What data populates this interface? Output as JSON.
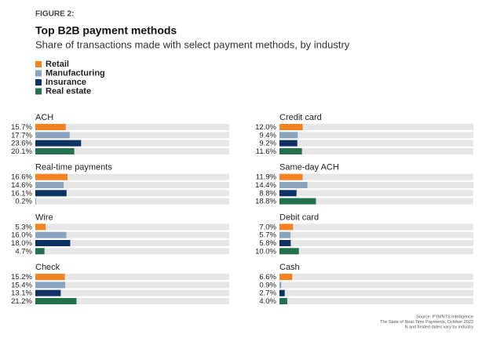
{
  "figure": "FIGURE 2:",
  "title": "Top B2B payment methods",
  "subtitle": "Share of transactions made with select payment methods, by industry",
  "legend": [
    {
      "name": "Retail",
      "color": "#f58220"
    },
    {
      "name": "Manufacturing",
      "color": "#8aa4bd"
    },
    {
      "name": "Insurance",
      "color": "#0f3264"
    },
    {
      "name": "Real estate",
      "color": "#23704f"
    }
  ],
  "source": [
    "Source: PYMNTS Intelligence",
    "The State of Real-Time Payments, October 2023",
    "N and fielded dates vary by industry"
  ],
  "chart_data": [
    {
      "type": "bar",
      "title": "ACH",
      "xlim": [
        0,
        100
      ],
      "values": [
        15.7,
        17.7,
        23.6,
        20.1
      ],
      "value_labels": [
        "15.7%",
        "17.7%",
        "23.6%",
        "20.1%"
      ]
    },
    {
      "type": "bar",
      "title": "Real-time payments",
      "xlim": [
        0,
        100
      ],
      "values": [
        16.6,
        14.6,
        16.1,
        0.2
      ],
      "value_labels": [
        "16.6%",
        "14.6%",
        "16.1%",
        "0.2%"
      ]
    },
    {
      "type": "bar",
      "title": "Wire",
      "xlim": [
        0,
        100
      ],
      "values": [
        5.3,
        16.0,
        18.0,
        4.7
      ],
      "value_labels": [
        "5.3%",
        "16.0%",
        "18.0%",
        "4.7%"
      ]
    },
    {
      "type": "bar",
      "title": "Check",
      "xlim": [
        0,
        100
      ],
      "values": [
        15.2,
        15.4,
        13.1,
        21.2
      ],
      "value_labels": [
        "15.2%",
        "15.4%",
        "13.1%",
        "21.2%"
      ]
    },
    {
      "type": "bar",
      "title": "Credit card",
      "xlim": [
        0,
        100
      ],
      "values": [
        12.0,
        9.4,
        9.2,
        11.6
      ],
      "value_labels": [
        "12.0%",
        "9.4%",
        "9.2%",
        "11.6%"
      ]
    },
    {
      "type": "bar",
      "title": "Same-day ACH",
      "xlim": [
        0,
        100
      ],
      "values": [
        11.9,
        14.4,
        8.8,
        18.8
      ],
      "value_labels": [
        "11.9%",
        "14.4%",
        "8.8%",
        "18.8%"
      ]
    },
    {
      "type": "bar",
      "title": "Debit card",
      "xlim": [
        0,
        100
      ],
      "values": [
        7.0,
        5.7,
        5.8,
        10.0
      ],
      "value_labels": [
        "7.0%",
        "5.7%",
        "5.8%",
        "10.0%"
      ]
    },
    {
      "type": "bar",
      "title": "Cash",
      "xlim": [
        0,
        100
      ],
      "values": [
        6.6,
        0.9,
        2.7,
        4.0
      ],
      "value_labels": [
        "6.6%",
        "0.9%",
        "2.7%",
        "4.0%"
      ]
    }
  ]
}
